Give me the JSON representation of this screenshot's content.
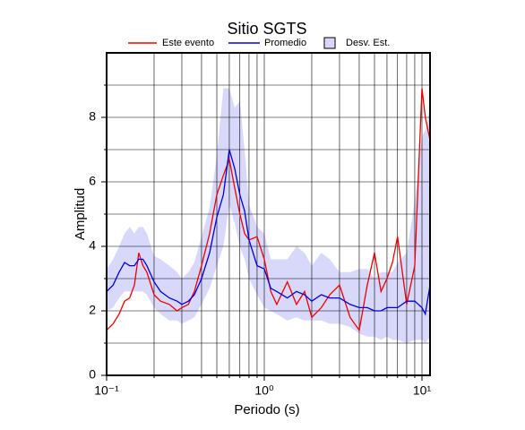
{
  "chart_data": {
    "type": "line",
    "title": "Sitio SGTS",
    "x_label": "Periodo (s)",
    "y_label": "Amplitud",
    "x_scale": "log",
    "grid": true,
    "x": [
      0.1,
      0.11,
      0.12,
      0.13,
      0.14,
      0.15,
      0.16,
      0.17,
      0.18,
      0.2,
      0.22,
      0.25,
      0.28,
      0.3,
      0.33,
      0.36,
      0.4,
      0.45,
      0.5,
      0.55,
      0.6,
      0.65,
      0.7,
      0.75,
      0.8,
      0.9,
      1.0,
      1.1,
      1.2,
      1.4,
      1.6,
      1.8,
      2.0,
      2.3,
      2.6,
      3.0,
      3.5,
      4.0,
      4.5,
      5.0,
      5.5,
      6.0,
      6.5,
      7.0,
      8.0,
      9.0,
      10,
      10.5,
      11.25
    ],
    "series": [
      {
        "name": "Este evento",
        "color": "#ee0000",
        "values": [
          1.4,
          1.6,
          1.9,
          2.3,
          2.4,
          2.8,
          3.8,
          3.4,
          3.2,
          2.5,
          2.3,
          2.2,
          2.0,
          2.1,
          2.2,
          2.6,
          3.4,
          4.4,
          5.6,
          6.2,
          6.7,
          5.8,
          5.0,
          4.4,
          4.2,
          4.3,
          3.6,
          2.6,
          2.2,
          2.9,
          2.2,
          2.6,
          1.8,
          2.1,
          2.5,
          2.8,
          1.8,
          1.4,
          2.8,
          3.8,
          2.6,
          3.0,
          3.5,
          4.3,
          2.2,
          3.4,
          8.9,
          8.0,
          7.3
        ]
      },
      {
        "name": "Promedio",
        "color": "#0000dd",
        "values": [
          2.6,
          2.8,
          3.2,
          3.5,
          3.4,
          3.4,
          3.6,
          3.6,
          3.4,
          2.9,
          2.6,
          2.4,
          2.3,
          2.2,
          2.3,
          2.5,
          3.0,
          3.8,
          4.9,
          5.6,
          7.0,
          6.4,
          5.6,
          5.1,
          4.2,
          3.4,
          3.3,
          2.7,
          2.6,
          2.4,
          2.6,
          2.5,
          2.3,
          2.5,
          2.4,
          2.4,
          2.2,
          2.1,
          2.1,
          2.0,
          2.0,
          2.1,
          2.1,
          2.1,
          2.3,
          2.3,
          2.1,
          1.9,
          2.8
        ]
      }
    ],
    "band": {
      "name": "Desv. Est.",
      "color": "#d8d8fb",
      "upper": [
        3.3,
        3.6,
        4.0,
        4.4,
        4.6,
        4.4,
        4.6,
        4.6,
        4.4,
        3.7,
        3.6,
        3.4,
        3.2,
        3.0,
        3.2,
        3.5,
        4.3,
        5.2,
        6.8,
        8.9,
        8.9,
        8.3,
        8.5,
        7.0,
        5.3,
        4.6,
        4.4,
        3.6,
        3.6,
        3.6,
        4.0,
        3.8,
        3.4,
        3.8,
        3.6,
        3.2,
        3.2,
        3.3,
        3.3,
        3.0,
        3.2,
        3.2,
        3.2,
        3.5,
        3.8,
        5.4,
        7.4,
        7.6,
        8.3
      ],
      "lower": [
        2.0,
        2.1,
        2.4,
        2.6,
        2.6,
        2.6,
        2.6,
        2.6,
        2.5,
        2.1,
        1.9,
        1.7,
        1.7,
        1.6,
        1.7,
        1.8,
        2.2,
        2.7,
        3.4,
        4.0,
        5.3,
        4.7,
        4.0,
        3.6,
        3.0,
        2.5,
        2.1,
        2.0,
        1.9,
        1.7,
        1.8,
        1.7,
        1.7,
        1.7,
        1.6,
        1.6,
        1.5,
        1.3,
        1.2,
        1.2,
        1.1,
        1.2,
        1.1,
        1.1,
        1.0,
        1.1,
        1.1,
        1.0,
        1.2
      ]
    },
    "xlim": [
      0.1,
      11.25
    ],
    "ylim": [
      0,
      10
    ],
    "xticks": [
      {
        "value": 0.1,
        "label": "10⁻¹"
      },
      {
        "value": 1,
        "label": "10⁰"
      },
      {
        "value": 10,
        "label": "10¹"
      }
    ],
    "minor_xticks": [
      0.2,
      0.3,
      0.4,
      0.5,
      0.6,
      0.7,
      0.8,
      0.9,
      2,
      3,
      4,
      5,
      6,
      7,
      8,
      9
    ],
    "yticks": [
      0,
      2,
      4,
      6,
      8
    ],
    "minor_yticks": [
      1,
      3,
      5,
      7,
      9
    ]
  }
}
